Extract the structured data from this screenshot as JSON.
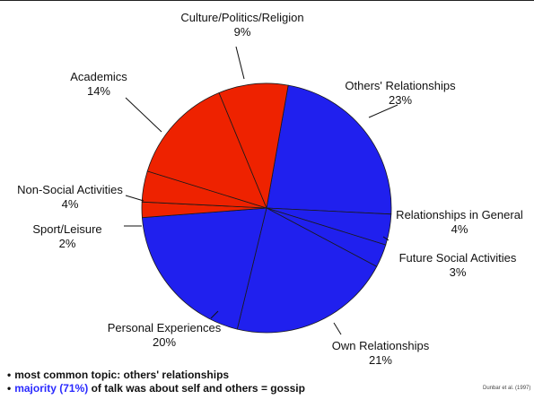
{
  "chart_data": {
    "type": "pie",
    "slices": [
      {
        "label": "Others' Relationships",
        "value": 23,
        "value_text": "23%",
        "color": "#2020ee"
      },
      {
        "label": "Relationships in General",
        "value": 4,
        "value_text": "4%",
        "color": "#2020ee"
      },
      {
        "label": "Future Social Activities",
        "value": 3,
        "value_text": "3%",
        "color": "#2020ee"
      },
      {
        "label": "Own Relationships",
        "value": 21,
        "value_text": "21%",
        "color": "#2020ee"
      },
      {
        "label": "Personal Experiences",
        "value": 20,
        "value_text": "20%",
        "color": "#2020ee"
      },
      {
        "label": "Sport/Leisure",
        "value": 2,
        "value_text": "2%",
        "color": "#ee2200"
      },
      {
        "label": "Non-Social Activities",
        "value": 4,
        "value_text": "4%",
        "color": "#ee2200"
      },
      {
        "label": "Academics",
        "value": 14,
        "value_text": "14%",
        "color": "#ee2200"
      },
      {
        "label": "Culture/Politics/Religion",
        "value": 9,
        "value_text": "9%",
        "color": "#ee2200"
      }
    ],
    "start_angle_deg": -80,
    "direction": "clockwise"
  },
  "notes": {
    "bullet1": "most common topic: others' relationships",
    "bullet2_highlight": "majority (71%)",
    "bullet2_rest": " of talk was about self and others = gossip",
    "bullet_marker": "•"
  },
  "source": "Dunbar et al. (1997)"
}
